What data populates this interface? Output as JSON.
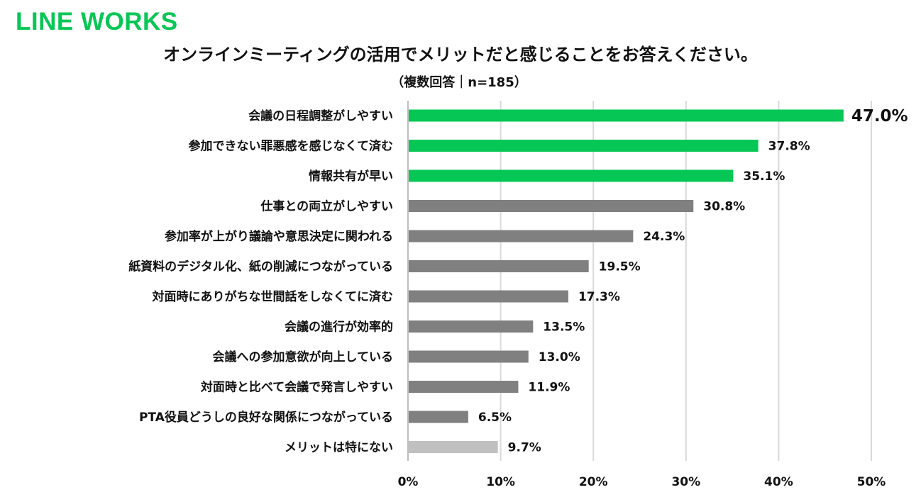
{
  "logo": "LINE WORKS",
  "chart_data": {
    "type": "bar",
    "orientation": "horizontal",
    "title": "オンラインミーティングの活用でメリットだと感じることをお答えください。",
    "subtitle": "（複数回答｜n=185）",
    "categories": [
      "会議の日程調整がしやすい",
      "参加できない罪悪感を感じなくて済む",
      "情報共有が早い",
      "仕事との両立がしやすい",
      "参加率が上がり議論や意思決定に関われる",
      "紙資料のデジタル化、紙の削減につながっている",
      "対面時にありがちな世間話をしなくてに済む",
      "会議の進行が効率的",
      "会議への参加意欲が向上している",
      "対面時と比べて会議で発言しやすい",
      "PTA役員どうしの良好な関係につながっている",
      "メリットは特にない"
    ],
    "values": [
      47.0,
      37.8,
      35.1,
      30.8,
      24.3,
      19.5,
      17.3,
      13.5,
      13.0,
      11.9,
      6.5,
      9.7
    ],
    "value_labels": [
      "47.0%",
      "37.8%",
      "35.1%",
      "30.8%",
      "24.3%",
      "19.5%",
      "17.3%",
      "13.5%",
      "13.0%",
      "11.9%",
      "6.5%",
      "9.7%"
    ],
    "bar_colors": [
      "#06c755",
      "#06c755",
      "#06c755",
      "#808080",
      "#808080",
      "#808080",
      "#808080",
      "#808080",
      "#808080",
      "#808080",
      "#808080",
      "#c0c0c0"
    ],
    "xlim": [
      0,
      50
    ],
    "xticks": [
      "0%",
      "10%",
      "20%",
      "30%",
      "40%",
      "50%"
    ],
    "xtick_values": [
      0,
      10,
      20,
      30,
      40,
      50
    ],
    "grid": true,
    "gridline_color": "#d9d9d9"
  }
}
